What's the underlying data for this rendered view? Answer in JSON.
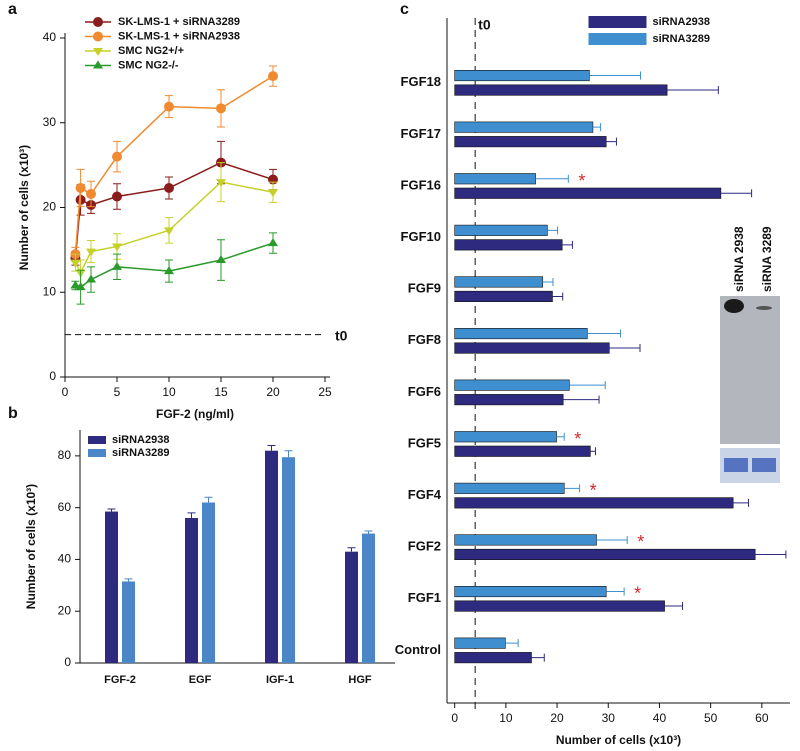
{
  "chart_data": [
    {
      "type": "line",
      "panel": "a",
      "xlabel": "FGF-2 (ng/ml)",
      "ylabel": "Number of cells (x10³)",
      "x": [
        1,
        1.5,
        2.5,
        5,
        10,
        15,
        20
      ],
      "xlim": [
        0,
        25
      ],
      "xticks": [
        0,
        5,
        10,
        15,
        20,
        25
      ],
      "ylim": [
        0,
        40
      ],
      "yticks": [
        0,
        10,
        20,
        30,
        40
      ],
      "legend": "upper left",
      "reference_line": {
        "text": "t0",
        "y": 5
      },
      "series": [
        {
          "name": "SK-LMS-1 + siRNA3289",
          "color": "#8b1c1c",
          "marker": "circle",
          "values": [
            14,
            20.9,
            20.3,
            21.3,
            22.3,
            25.3,
            23.3
          ],
          "errors": [
            0.8,
            1.8,
            1.0,
            1.5,
            1.3,
            2.5,
            1.2
          ]
        },
        {
          "name": "SK-LMS-1 + siRNA2938",
          "color": "#f08a30",
          "marker": "circle",
          "values": [
            14.5,
            22.3,
            21.6,
            26,
            31.9,
            31.7,
            35.5
          ],
          "errors": [
            0.8,
            2.2,
            1.5,
            1.8,
            1.3,
            2.2,
            1.2
          ]
        },
        {
          "name": "SMC NG2+/+",
          "color": "#c5d12a",
          "marker": "triangle-down",
          "values": [
            13.5,
            12.3,
            14.8,
            15.4,
            17.3,
            23,
            21.8
          ],
          "errors": [
            1.0,
            1.5,
            1.3,
            1.5,
            1.5,
            2.3,
            1.2
          ]
        },
        {
          "name": "SMC NG2-/-",
          "color": "#2a9a2a",
          "marker": "triangle-up",
          "values": [
            10.8,
            10.6,
            11.5,
            13,
            12.5,
            13.8,
            15.8
          ],
          "errors": [
            0.5,
            2.0,
            1.5,
            1.5,
            1.3,
            2.4,
            1.2
          ]
        }
      ]
    },
    {
      "type": "bar",
      "panel": "b",
      "ylabel": "Number of cells (x10³)",
      "categories": [
        "FGF-2",
        "EGF",
        "IGF-1",
        "HGF"
      ],
      "ylim": [
        0,
        90
      ],
      "yticks": [
        0,
        20,
        40,
        60,
        80
      ],
      "legend": "upper left",
      "series": [
        {
          "name": "siRNA2938",
          "color": "#2e2a7f",
          "values": [
            58.5,
            56,
            82,
            43
          ],
          "errors": [
            1,
            2,
            2,
            1.5
          ]
        },
        {
          "name": "siRNA3289",
          "color": "#4a86c8",
          "values": [
            31.5,
            62,
            79.5,
            50
          ],
          "errors": [
            1,
            2,
            2.5,
            1
          ]
        }
      ]
    },
    {
      "type": "hbar",
      "panel": "c",
      "xlabel": "Number of cells (x10³)",
      "categories": [
        "FGF18",
        "FGF17",
        "FGF16",
        "FGF10",
        "FGF9",
        "FGF8",
        "FGF6",
        "FGF5",
        "FGF4",
        "FGF2",
        "FGF1",
        "Control"
      ],
      "xlim": [
        -1.5,
        65.5
      ],
      "xticks": [
        0,
        10,
        20,
        30,
        40,
        50,
        60
      ],
      "legend": "upper center",
      "reference_line": {
        "text": "t0",
        "x": 4
      },
      "annotations": [
        {
          "category": "FGF16",
          "text": "*"
        },
        {
          "category": "FGF5",
          "text": "*"
        },
        {
          "category": "FGF4",
          "text": "*"
        },
        {
          "category": "FGF2",
          "text": "*"
        },
        {
          "category": "FGF1",
          "text": "*"
        }
      ],
      "series": [
        {
          "name": "siRNA3289",
          "color": "#3f8fd0",
          "values": [
            26.3,
            27,
            15.8,
            18.1,
            17.2,
            25.9,
            22.4,
            19.9,
            21.4,
            27.7,
            29.6,
            9.9
          ],
          "errors": [
            10,
            1.5,
            6.4,
            2,
            2,
            6.5,
            7,
            1.5,
            3,
            6,
            3.5,
            2.5
          ]
        },
        {
          "name": "siRNA2938",
          "color": "#2e2a80",
          "values": [
            41.5,
            29.6,
            52,
            21,
            19.1,
            30.2,
            21.2,
            26.5,
            54.4,
            58.7,
            41,
            15
          ],
          "errors": [
            10,
            2,
            6,
            2,
            2,
            6,
            7,
            1,
            3,
            6,
            3.5,
            2.5
          ]
        }
      ]
    }
  ],
  "blot": {
    "labels": [
      "siRNA 2938",
      "siRNA 3289"
    ]
  }
}
